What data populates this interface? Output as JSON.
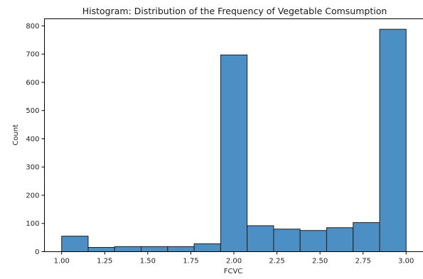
{
  "chart_data": {
    "type": "bar",
    "title": "Histogram: Distribution of the Frequency of Vegetable Comsumption",
    "xlabel": "FCVC",
    "ylabel": "Count",
    "bins": [
      {
        "start": 1.0,
        "end": 1.1538,
        "count": 55
      },
      {
        "start": 1.1538,
        "end": 1.3077,
        "count": 15
      },
      {
        "start": 1.3077,
        "end": 1.4615,
        "count": 18
      },
      {
        "start": 1.4615,
        "end": 1.6154,
        "count": 18
      },
      {
        "start": 1.6154,
        "end": 1.7692,
        "count": 18
      },
      {
        "start": 1.7692,
        "end": 1.9231,
        "count": 28
      },
      {
        "start": 1.9231,
        "end": 2.0769,
        "count": 697
      },
      {
        "start": 2.0769,
        "end": 2.2308,
        "count": 92
      },
      {
        "start": 2.2308,
        "end": 2.3846,
        "count": 80
      },
      {
        "start": 2.3846,
        "end": 2.5385,
        "count": 75
      },
      {
        "start": 2.5385,
        "end": 2.6923,
        "count": 85
      },
      {
        "start": 2.6923,
        "end": 2.8462,
        "count": 103
      },
      {
        "start": 2.8462,
        "end": 3.0,
        "count": 788
      }
    ],
    "xlim": [
      0.9,
      3.1
    ],
    "ylim": [
      0,
      825
    ],
    "xticks": [
      1.0,
      1.25,
      1.5,
      1.75,
      2.0,
      2.25,
      2.5,
      2.75,
      3.0
    ],
    "xtick_labels": [
      "1.00",
      "1.25",
      "1.50",
      "1.75",
      "2.00",
      "2.25",
      "2.50",
      "2.75",
      "3.00"
    ],
    "yticks": [
      0,
      100,
      200,
      300,
      400,
      500,
      600,
      700,
      800
    ],
    "ytick_labels": [
      "0",
      "100",
      "200",
      "300",
      "400",
      "500",
      "600",
      "700",
      "800"
    ],
    "bar_color": "#4c8fc5",
    "edge_color": "#1f1f1f",
    "grid": false,
    "legend": false
  }
}
